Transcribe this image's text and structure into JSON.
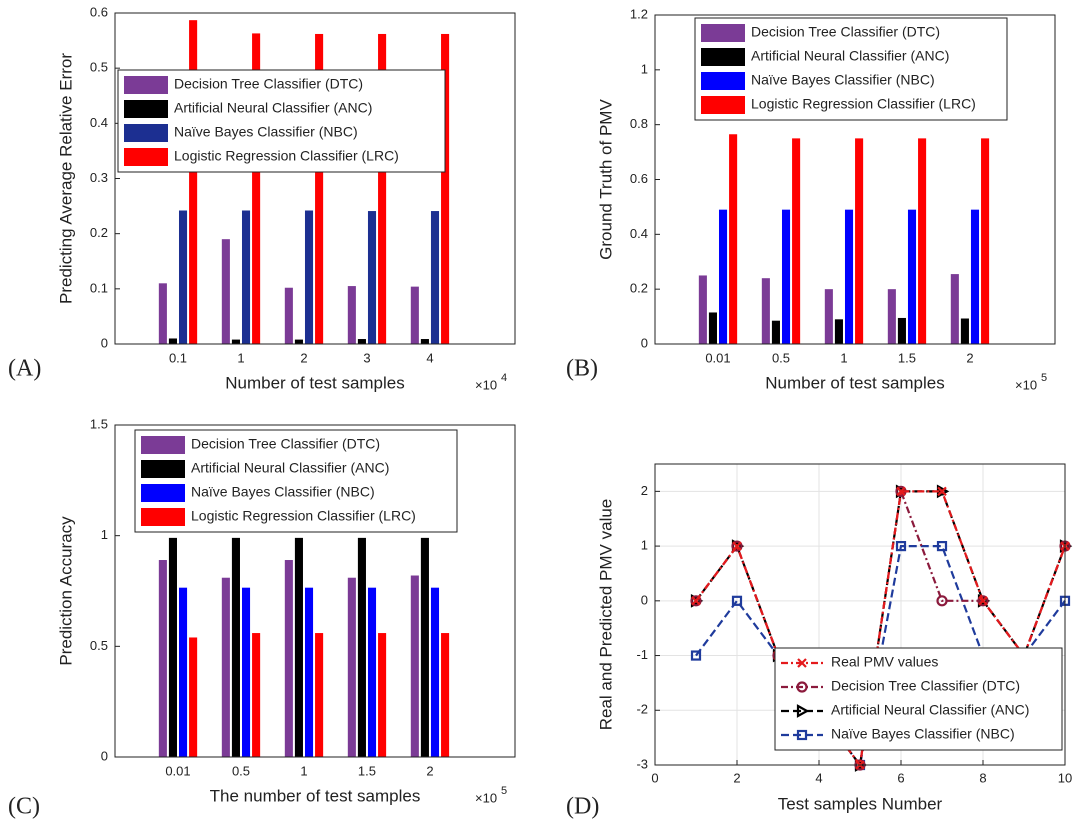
{
  "chart_data": [
    {
      "type": "bar",
      "panel_label": "(A)",
      "y_label": "Predicting Average Relative Error",
      "x_label": "Number of test samples",
      "x_multiplier": "×10",
      "x_multiplier_power": "4",
      "categories": [
        "0.1",
        "1",
        "2",
        "3",
        "4"
      ],
      "series": [
        {
          "name": "Decision Tree Classifier (DTC)",
          "color": "#7b3b96",
          "values": [
            0.11,
            0.19,
            0.102,
            0.105,
            0.104
          ]
        },
        {
          "name": "Artificial Neural Classifier (ANC)",
          "color": "#000000",
          "values": [
            0.01,
            0.008,
            0.008,
            0.009,
            0.009
          ]
        },
        {
          "name": "Naïve Bayes Classifier (NBC)",
          "color": "#1c2f91",
          "values": [
            0.242,
            0.242,
            0.242,
            0.241,
            0.241
          ]
        },
        {
          "name": "Logistic Regression Classifier (LRC)",
          "color": "#ff0000",
          "values": [
            0.587,
            0.563,
            0.562,
            0.562,
            0.562
          ]
        }
      ],
      "ylim": [
        0,
        0.6
      ],
      "yticks": [
        0,
        0.1,
        0.2,
        0.3,
        0.4,
        0.5,
        0.6
      ],
      "grid": false,
      "legend": "upper left"
    },
    {
      "type": "bar",
      "panel_label": "(B)",
      "y_label": "Ground Truth of PMV",
      "x_label": "Number of test samples",
      "x_multiplier": "×10",
      "x_multiplier_power": "5",
      "categories": [
        "0.01",
        "0.5",
        "1",
        "1.5",
        "2"
      ],
      "series": [
        {
          "name": "Decision Tree Classifier (DTC)",
          "color": "#7b3b96",
          "values": [
            0.25,
            0.24,
            0.2,
            0.2,
            0.255
          ]
        },
        {
          "name": "Artificial Neural Classifier (ANC)",
          "color": "#000000",
          "values": [
            0.115,
            0.085,
            0.09,
            0.095,
            0.093
          ]
        },
        {
          "name": "Naïve Bayes Classifier (NBC)",
          "color": "#0000ff",
          "values": [
            0.49,
            0.49,
            0.49,
            0.49,
            0.49
          ]
        },
        {
          "name": "Logistic Regression Classifier (LRC)",
          "color": "#ff0000",
          "values": [
            0.765,
            0.75,
            0.75,
            0.75,
            0.75
          ]
        }
      ],
      "ylim": [
        0,
        1.2
      ],
      "yticks": [
        0,
        0.2,
        0.4,
        0.6,
        0.8,
        1,
        1.2
      ],
      "grid": false,
      "legend": "upper left"
    },
    {
      "type": "bar",
      "panel_label": "(C)",
      "y_label": "Prediction Accuracy",
      "x_label": "The number of test samples",
      "x_multiplier": "×10",
      "x_multiplier_power": "5",
      "categories": [
        "0.01",
        "0.5",
        "1",
        "1.5",
        "2"
      ],
      "series": [
        {
          "name": "Decision Tree Classifier (DTC)",
          "color": "#7b3b96",
          "values": [
            0.89,
            0.81,
            0.89,
            0.81,
            0.82
          ]
        },
        {
          "name": "Artificial Neural Classifier (ANC)",
          "color": "#000000",
          "values": [
            0.99,
            0.99,
            0.99,
            0.99,
            0.99
          ]
        },
        {
          "name": "Naïve Bayes Classifier (NBC)",
          "color": "#0000ff",
          "values": [
            0.765,
            0.765,
            0.765,
            0.765,
            0.765
          ]
        },
        {
          "name": "Logistic Regression Classifier (LRC)",
          "color": "#ff0000",
          "values": [
            0.54,
            0.56,
            0.56,
            0.56,
            0.56
          ]
        }
      ],
      "ylim": [
        0,
        1.5
      ],
      "yticks": [
        0,
        0.5,
        1,
        1.5
      ],
      "grid": false,
      "legend": "upper left"
    },
    {
      "type": "line",
      "panel_label": "(D)",
      "y_label": "Real and Predicted PMV value",
      "x_label": "Test samples Number",
      "x": [
        1,
        2,
        3,
        4,
        5,
        6,
        7,
        8,
        9,
        10
      ],
      "series": [
        {
          "name": "Real PMV values",
          "color": "#e41a1c",
          "linestyle": "dashdot",
          "marker": "x",
          "values": [
            0,
            1,
            -1,
            -2,
            -3,
            2,
            2,
            0,
            -1,
            1
          ]
        },
        {
          "name": "Decision Tree Classifier (DTC)",
          "color": "#8b1a3c",
          "linestyle": "dashdot",
          "marker": "circle",
          "values": [
            0,
            1,
            -1,
            -2,
            -3,
            2,
            0,
            0,
            -1,
            1
          ]
        },
        {
          "name": "Artificial Neural Classifier (ANC)",
          "color": "#000000",
          "linestyle": "dashed",
          "marker": "triangle-right",
          "values": [
            0,
            1,
            -1,
            -2,
            -3,
            2,
            2,
            0,
            -1,
            1
          ]
        },
        {
          "name": "Naïve Bayes Classifier (NBC)",
          "color": "#1f3b9c",
          "linestyle": "dashed",
          "marker": "square",
          "values": [
            -1,
            0,
            -1,
            -2,
            -3,
            1,
            1,
            -1,
            -1,
            0
          ]
        }
      ],
      "xlim": [
        0,
        10
      ],
      "xticks": [
        0,
        2,
        4,
        6,
        8,
        10
      ],
      "ylim": [
        -3,
        2.5
      ],
      "yticks": [
        -3,
        -2,
        -1,
        0,
        1,
        2
      ],
      "grid": true,
      "legend": "lower right"
    }
  ]
}
